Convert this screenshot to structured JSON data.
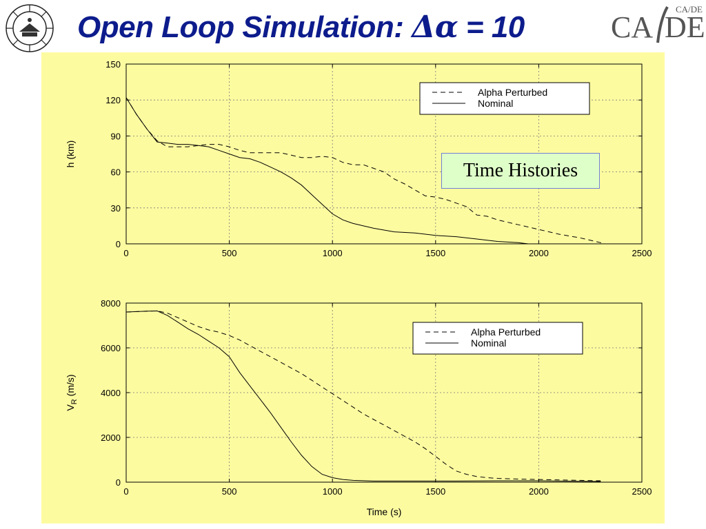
{
  "slide": {
    "title_prefix": "Open Loop Simulation: ",
    "title_delta": "Δ",
    "title_alpha": "α",
    "title_suffix": " = 10",
    "logo_right_main": "CA/DE",
    "logo_right_small": "CA/DE"
  },
  "annotation": {
    "text": "Time Histories"
  },
  "chart_data": [
    {
      "type": "line",
      "xlim": [
        0,
        2500
      ],
      "ylim": [
        0,
        150
      ],
      "xticks": [
        0,
        500,
        1000,
        1500,
        2000,
        2500
      ],
      "yticks": [
        0,
        30,
        60,
        90,
        120,
        150
      ],
      "xticklabels": [
        "0",
        "500",
        "1000",
        "1500",
        "2000",
        "2500"
      ],
      "yticklabels": [
        "0",
        "30",
        "60",
        "90",
        "120",
        "150"
      ],
      "xlabel": "",
      "ylabel": "h (km)",
      "grid": true,
      "legend_position": "top-right",
      "series": [
        {
          "name": "Alpha Perturbed",
          "style": "dashed",
          "x": [
            0,
            50,
            100,
            150,
            200,
            250,
            300,
            350,
            400,
            450,
            500,
            550,
            600,
            650,
            700,
            750,
            800,
            850,
            900,
            950,
            1000,
            1050,
            1100,
            1150,
            1200,
            1250,
            1300,
            1350,
            1400,
            1450,
            1500,
            1550,
            1600,
            1650,
            1700,
            1750,
            1800,
            1850,
            1900,
            1950,
            2000,
            2100,
            2200,
            2300,
            2320
          ],
          "values": [
            122,
            108,
            96,
            86,
            81,
            81,
            81,
            82,
            83,
            83,
            81,
            78,
            76,
            76,
            76,
            76,
            74,
            72,
            72,
            73,
            72,
            68,
            66,
            66,
            63,
            60,
            54,
            50,
            45,
            40,
            39,
            37,
            34,
            31,
            24,
            23,
            20,
            18,
            16,
            14,
            12,
            8,
            5,
            1,
            0
          ]
        },
        {
          "name": "Nominal",
          "style": "solid",
          "x": [
            0,
            50,
            100,
            150,
            200,
            250,
            300,
            350,
            400,
            450,
            500,
            550,
            600,
            650,
            700,
            750,
            800,
            850,
            900,
            950,
            1000,
            1050,
            1100,
            1200,
            1300,
            1400,
            1500,
            1600,
            1700,
            1800,
            1900,
            1950
          ],
          "values": [
            122,
            108,
            96,
            85,
            84,
            83,
            83,
            82,
            81,
            78,
            75,
            72,
            71,
            68,
            64,
            60,
            55,
            49,
            41,
            33,
            25,
            20,
            17,
            13,
            10,
            9,
            7,
            6,
            4,
            2,
            1,
            0
          ]
        }
      ]
    },
    {
      "type": "line",
      "xlim": [
        0,
        2500
      ],
      "ylim": [
        0,
        8000
      ],
      "xticks": [
        0,
        500,
        1000,
        1500,
        2000,
        2500
      ],
      "yticks": [
        0,
        2000,
        4000,
        6000,
        8000
      ],
      "xticklabels": [
        "0",
        "500",
        "1000",
        "1500",
        "2000",
        "2500"
      ],
      "yticklabels": [
        "0",
        "2000",
        "4000",
        "6000",
        "8000"
      ],
      "xlabel": "Time (s)",
      "ylabel": "V",
      "ylabel_sub": "R",
      "ylabel_unit": " (m/s)",
      "grid": true,
      "legend_position": "top-right",
      "series": [
        {
          "name": "Alpha Perturbed",
          "style": "dashed",
          "x": [
            0,
            50,
            100,
            150,
            200,
            250,
            300,
            350,
            400,
            450,
            500,
            550,
            600,
            650,
            700,
            750,
            800,
            850,
            900,
            950,
            1000,
            1050,
            1100,
            1150,
            1200,
            1250,
            1300,
            1350,
            1400,
            1450,
            1500,
            1550,
            1600,
            1650,
            1700,
            1750,
            1800,
            1900,
            2000,
            2100,
            2200,
            2300
          ],
          "values": [
            7600,
            7620,
            7640,
            7650,
            7550,
            7350,
            7150,
            6950,
            6800,
            6700,
            6550,
            6350,
            6100,
            5850,
            5600,
            5350,
            5100,
            4850,
            4550,
            4250,
            3950,
            3650,
            3350,
            3050,
            2800,
            2550,
            2300,
            2050,
            1800,
            1500,
            1150,
            800,
            500,
            350,
            250,
            200,
            170,
            140,
            120,
            100,
            80,
            60
          ]
        },
        {
          "name": "Nominal",
          "style": "solid",
          "x": [
            0,
            50,
            100,
            150,
            200,
            250,
            300,
            350,
            400,
            450,
            500,
            550,
            600,
            650,
            700,
            750,
            800,
            850,
            900,
            950,
            1000,
            1050,
            1100,
            1200,
            1400,
            1600,
            1800,
            2000,
            2200,
            2300
          ],
          "values": [
            7600,
            7620,
            7640,
            7650,
            7450,
            7150,
            6850,
            6600,
            6300,
            6000,
            5600,
            4900,
            4300,
            3700,
            3100,
            2450,
            1800,
            1200,
            700,
            350,
            200,
            120,
            80,
            50,
            50,
            50,
            60,
            60,
            40,
            30
          ]
        }
      ]
    }
  ]
}
